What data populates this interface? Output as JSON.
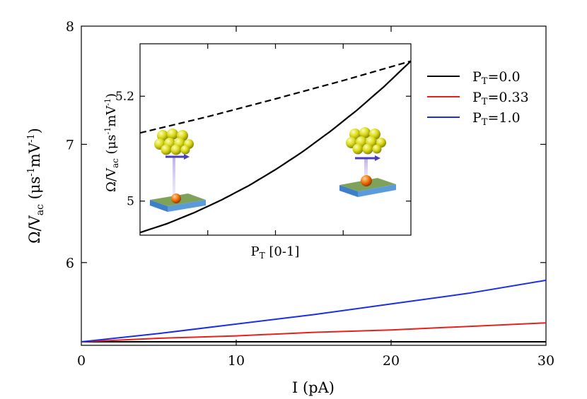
{
  "chart_data": [
    {
      "type": "line",
      "xlabel": "I (pA)",
      "ylabel": {
        "main": "Ω/V",
        "sub": "ac",
        "units": " (μs",
        "exp1": "-1",
        "mid": "mV",
        "exp2": "-1",
        "close": ")"
      },
      "xlim": [
        0,
        30
      ],
      "ylim": [
        5.3,
        8.0
      ],
      "xticks": [
        0,
        10,
        20,
        30
      ],
      "yticks": [
        6,
        7,
        8
      ],
      "xtick_labels": [
        "0",
        "10",
        "20",
        "30"
      ],
      "ytick_labels": [
        "6",
        "7",
        "8"
      ],
      "legend_position": "top-right",
      "series": [
        {
          "name": "P_T=0.0",
          "label_main": "P",
          "label_sub": "T",
          "label_rest": "=0.0",
          "color": "#000000",
          "x": [
            0,
            5,
            10,
            15,
            20,
            25,
            30
          ],
          "y": [
            5.33,
            5.33,
            5.33,
            5.33,
            5.33,
            5.33,
            5.33
          ]
        },
        {
          "name": "P_T=0.33",
          "label_main": "P",
          "label_sub": "T",
          "label_rest": "=0.33",
          "color": "#e8201a",
          "x": [
            0,
            5,
            10,
            15,
            20,
            25,
            30
          ],
          "y": [
            5.33,
            5.36,
            5.38,
            5.41,
            5.43,
            5.46,
            5.49
          ]
        },
        {
          "name": "P_T=1.0",
          "label_main": "P",
          "label_sub": "T",
          "label_rest": "=1.0",
          "color": "#1a2ee8",
          "x": [
            0,
            5,
            10,
            15,
            20,
            25,
            30
          ],
          "y": [
            5.33,
            5.4,
            5.48,
            5.56,
            5.65,
            5.74,
            5.85
          ]
        }
      ]
    },
    {
      "type": "line",
      "title": "inset",
      "xlabel": {
        "main": "P",
        "sub": "T",
        "rest": " [0-1]"
      },
      "ylabel": {
        "main": "Ω/V",
        "sub": "ac",
        "units": " (μs",
        "exp1": "-1",
        "mid": "mV",
        "exp2": "-1",
        "close": ")"
      },
      "xlim": [
        0,
        1
      ],
      "ylim": [
        4.935,
        5.3
      ],
      "yticks": [
        5.0,
        5.2
      ],
      "ytick_labels": [
        "5",
        "5.2"
      ],
      "xticks_minor": [
        0.25,
        0.5,
        0.75
      ],
      "series": [
        {
          "name": "solid",
          "style": "solid",
          "color": "#000000",
          "x": [
            0,
            0.1,
            0.2,
            0.3,
            0.4,
            0.5,
            0.6,
            0.7,
            0.8,
            0.9,
            1.0
          ],
          "y": [
            4.94,
            4.957,
            4.978,
            5.002,
            5.029,
            5.06,
            5.094,
            5.132,
            5.173,
            5.218,
            5.267
          ]
        },
        {
          "name": "dashed",
          "style": "dashed",
          "color": "#000000",
          "x": [
            0,
            0.25,
            0.5,
            0.75,
            1.0
          ],
          "y": [
            5.13,
            5.161,
            5.195,
            5.23,
            5.267
          ]
        }
      ]
    }
  ]
}
